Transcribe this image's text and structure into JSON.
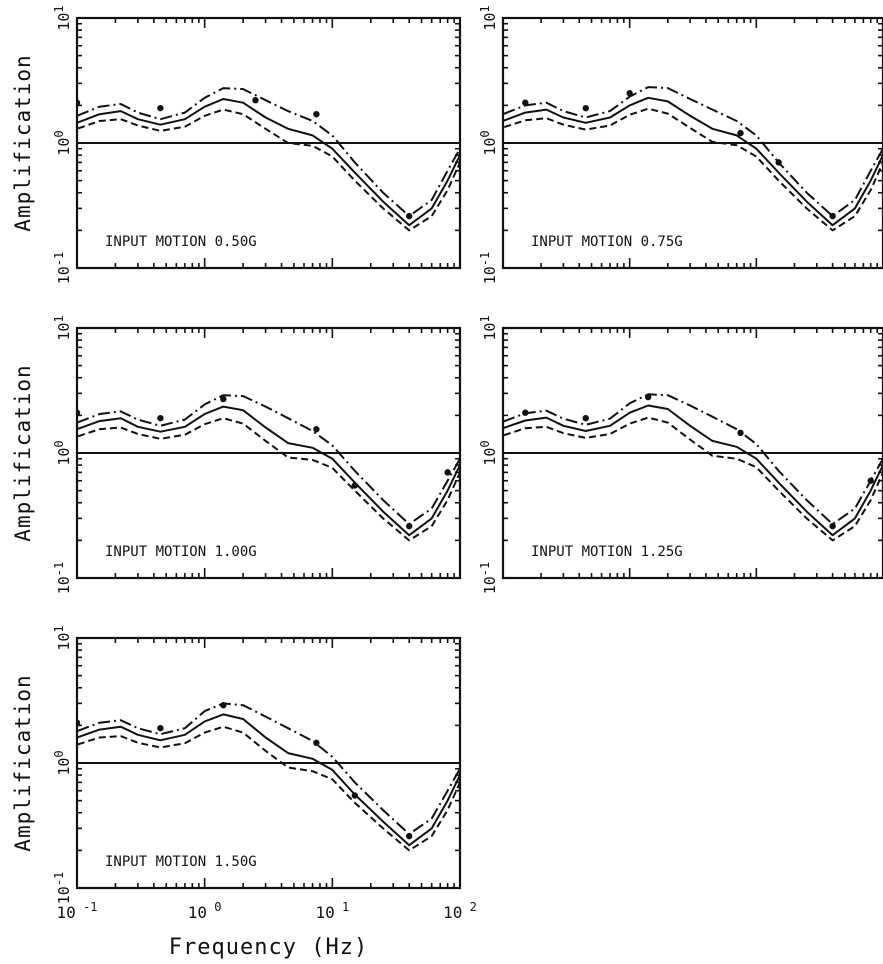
{
  "chart_data": [
    {
      "type": "line",
      "annotation": "INPUT MOTION 0.50G",
      "ylabel": "Amplification",
      "xlabel": "",
      "x_scale": "log",
      "y_scale": "log",
      "xlim": [
        0.1,
        100
      ],
      "ylim": [
        0.1,
        10
      ],
      "x_ticks": [
        "10 -1",
        "10 0",
        "10 1",
        "10 2"
      ],
      "y_ticks": [
        "10 -1",
        "10 0",
        "10 1"
      ],
      "reference_line": 1,
      "series": [
        {
          "style": "dash-dot",
          "x": [
            0.07,
            0.1,
            0.15,
            0.22,
            0.3,
            0.45,
            0.7,
            1,
            1.4,
            2,
            3,
            4.5,
            7,
            10,
            15,
            25,
            40,
            60,
            80,
            100
          ],
          "y": [
            1.4,
            1.65,
            1.95,
            2.05,
            1.75,
            1.55,
            1.75,
            2.3,
            2.75,
            2.7,
            2.2,
            1.8,
            1.5,
            1.15,
            0.7,
            0.4,
            0.26,
            0.35,
            0.6,
            0.9
          ]
        },
        {
          "style": "solid",
          "x": [
            0.07,
            0.1,
            0.15,
            0.22,
            0.3,
            0.45,
            0.7,
            1,
            1.4,
            2,
            3,
            4.5,
            7,
            10,
            15,
            25,
            40,
            60,
            80,
            100
          ],
          "y": [
            1.25,
            1.45,
            1.7,
            1.8,
            1.55,
            1.4,
            1.55,
            1.95,
            2.25,
            2.1,
            1.6,
            1.3,
            1.15,
            0.9,
            0.58,
            0.34,
            0.22,
            0.3,
            0.5,
            0.8
          ]
        },
        {
          "style": "dashed",
          "x": [
            0.07,
            0.1,
            0.15,
            0.22,
            0.3,
            0.45,
            0.7,
            1,
            1.4,
            2,
            3,
            4.5,
            7,
            10,
            15,
            25,
            40,
            60,
            80,
            100
          ],
          "y": [
            1.15,
            1.3,
            1.5,
            1.55,
            1.38,
            1.25,
            1.35,
            1.65,
            1.85,
            1.7,
            1.3,
            1.0,
            0.95,
            0.78,
            0.5,
            0.3,
            0.2,
            0.26,
            0.42,
            0.7
          ]
        },
        {
          "style": "dots",
          "x": [
            0.1,
            0.45,
            2.5,
            7.5,
            40
          ],
          "y": [
            2.1,
            1.9,
            2.2,
            1.7,
            0.26
          ]
        }
      ]
    },
    {
      "type": "line",
      "annotation": "INPUT MOTION 0.75G",
      "ylabel": "",
      "xlabel": "",
      "x_scale": "log",
      "y_scale": "log",
      "xlim": [
        0.1,
        100
      ],
      "ylim": [
        0.1,
        10
      ],
      "x_ticks": [
        "10 -1",
        "10 0",
        "10 1",
        "10 2"
      ],
      "y_ticks": [
        "10 -1",
        "10 0",
        "10 1"
      ],
      "reference_line": 1,
      "series": [
        {
          "style": "dash-dot",
          "x": [
            0.07,
            0.1,
            0.15,
            0.22,
            0.3,
            0.45,
            0.7,
            1,
            1.4,
            2,
            3,
            4.5,
            7,
            10,
            15,
            25,
            40,
            60,
            80,
            100
          ],
          "y": [
            1.45,
            1.7,
            2.0,
            2.1,
            1.8,
            1.6,
            1.8,
            2.35,
            2.8,
            2.75,
            2.25,
            1.85,
            1.5,
            1.15,
            0.7,
            0.4,
            0.26,
            0.35,
            0.6,
            0.9
          ]
        },
        {
          "style": "solid",
          "x": [
            0.07,
            0.1,
            0.15,
            0.22,
            0.3,
            0.45,
            0.7,
            1,
            1.4,
            2,
            3,
            4.5,
            7,
            10,
            15,
            25,
            40,
            60,
            80,
            100
          ],
          "y": [
            1.3,
            1.5,
            1.75,
            1.85,
            1.6,
            1.45,
            1.6,
            2.0,
            2.3,
            2.15,
            1.65,
            1.3,
            1.15,
            0.9,
            0.58,
            0.34,
            0.22,
            0.3,
            0.5,
            0.8
          ]
        },
        {
          "style": "dashed",
          "x": [
            0.07,
            0.1,
            0.15,
            0.22,
            0.3,
            0.45,
            0.7,
            1,
            1.4,
            2,
            3,
            4.5,
            7,
            10,
            15,
            25,
            40,
            60,
            80,
            100
          ],
          "y": [
            1.18,
            1.33,
            1.52,
            1.58,
            1.4,
            1.28,
            1.38,
            1.68,
            1.88,
            1.72,
            1.32,
            1.02,
            0.96,
            0.78,
            0.5,
            0.3,
            0.2,
            0.26,
            0.42,
            0.7
          ]
        },
        {
          "style": "dots",
          "x": [
            0.15,
            0.45,
            1.0,
            7.5,
            15,
            40
          ],
          "y": [
            2.1,
            1.9,
            2.5,
            1.2,
            0.7,
            0.26
          ]
        }
      ]
    },
    {
      "type": "line",
      "annotation": "INPUT MOTION 1.00G",
      "ylabel": "Amplification",
      "xlabel": "",
      "x_scale": "log",
      "y_scale": "log",
      "xlim": [
        0.1,
        100
      ],
      "ylim": [
        0.1,
        10
      ],
      "x_ticks": [
        "10 -1",
        "10 0",
        "10 1",
        "10 2"
      ],
      "y_ticks": [
        "10 -1",
        "10 0",
        "10 1"
      ],
      "reference_line": 1,
      "series": [
        {
          "style": "dash-dot",
          "x": [
            0.07,
            0.1,
            0.15,
            0.22,
            0.3,
            0.45,
            0.7,
            1,
            1.4,
            2,
            3,
            4.5,
            7,
            10,
            15,
            25,
            40,
            60,
            80,
            100
          ],
          "y": [
            1.5,
            1.75,
            2.05,
            2.15,
            1.85,
            1.65,
            1.85,
            2.45,
            2.9,
            2.85,
            2.35,
            1.9,
            1.5,
            1.15,
            0.72,
            0.42,
            0.27,
            0.36,
            0.6,
            0.9
          ]
        },
        {
          "style": "solid",
          "x": [
            0.07,
            0.1,
            0.15,
            0.22,
            0.3,
            0.45,
            0.7,
            1,
            1.4,
            2,
            3,
            4.5,
            7,
            10,
            15,
            25,
            40,
            60,
            80,
            100
          ],
          "y": [
            1.35,
            1.55,
            1.8,
            1.9,
            1.62,
            1.48,
            1.62,
            2.05,
            2.35,
            2.2,
            1.6,
            1.2,
            1.1,
            0.9,
            0.58,
            0.34,
            0.22,
            0.3,
            0.5,
            0.8
          ]
        },
        {
          "style": "dashed",
          "x": [
            0.07,
            0.1,
            0.15,
            0.22,
            0.3,
            0.45,
            0.7,
            1,
            1.4,
            2,
            3,
            4.5,
            7,
            10,
            15,
            25,
            40,
            60,
            80,
            100
          ],
          "y": [
            1.2,
            1.35,
            1.55,
            1.6,
            1.42,
            1.3,
            1.4,
            1.7,
            1.9,
            1.72,
            1.25,
            0.92,
            0.88,
            0.76,
            0.5,
            0.3,
            0.2,
            0.26,
            0.42,
            0.7
          ]
        },
        {
          "style": "dots",
          "x": [
            0.1,
            0.45,
            1.4,
            7.5,
            15,
            40,
            80
          ],
          "y": [
            2.1,
            1.9,
            2.7,
            1.55,
            0.55,
            0.26,
            0.7
          ]
        }
      ]
    },
    {
      "type": "line",
      "annotation": "INPUT MOTION 1.25G",
      "ylabel": "",
      "xlabel": "",
      "x_scale": "log",
      "y_scale": "log",
      "xlim": [
        0.1,
        100
      ],
      "ylim": [
        0.1,
        10
      ],
      "x_ticks": [
        "10 -1",
        "10 0",
        "10 1",
        "10 2"
      ],
      "y_ticks": [
        "10 -1",
        "10 0",
        "10 1"
      ],
      "reference_line": 1,
      "series": [
        {
          "style": "dash-dot",
          "x": [
            0.07,
            0.1,
            0.15,
            0.22,
            0.3,
            0.45,
            0.7,
            1,
            1.4,
            2,
            3,
            4.5,
            7,
            10,
            15,
            25,
            40,
            60,
            80,
            100
          ],
          "y": [
            1.5,
            1.78,
            2.08,
            2.18,
            1.88,
            1.68,
            1.88,
            2.5,
            2.95,
            2.9,
            2.4,
            1.95,
            1.55,
            1.18,
            0.72,
            0.42,
            0.27,
            0.36,
            0.6,
            0.9
          ]
        },
        {
          "style": "solid",
          "x": [
            0.07,
            0.1,
            0.15,
            0.22,
            0.3,
            0.45,
            0.7,
            1,
            1.4,
            2,
            3,
            4.5,
            7,
            10,
            15,
            25,
            40,
            60,
            80,
            100
          ],
          "y": [
            1.35,
            1.58,
            1.82,
            1.92,
            1.65,
            1.5,
            1.65,
            2.1,
            2.4,
            2.25,
            1.65,
            1.25,
            1.12,
            0.9,
            0.58,
            0.34,
            0.22,
            0.3,
            0.5,
            0.8
          ]
        },
        {
          "style": "dashed",
          "x": [
            0.07,
            0.1,
            0.15,
            0.22,
            0.3,
            0.45,
            0.7,
            1,
            1.4,
            2,
            3,
            4.5,
            7,
            10,
            15,
            25,
            40,
            60,
            80,
            100
          ],
          "y": [
            1.2,
            1.38,
            1.58,
            1.62,
            1.44,
            1.32,
            1.42,
            1.72,
            1.92,
            1.75,
            1.28,
            0.95,
            0.9,
            0.77,
            0.5,
            0.3,
            0.2,
            0.26,
            0.42,
            0.7
          ]
        },
        {
          "style": "dots",
          "x": [
            0.15,
            0.45,
            1.4,
            7.5,
            40,
            80
          ],
          "y": [
            2.1,
            1.9,
            2.8,
            1.45,
            0.26,
            0.6
          ]
        }
      ]
    },
    {
      "type": "line",
      "annotation": "INPUT MOTION 1.50G",
      "ylabel": "Amplification",
      "xlabel": "Frequency (Hz)",
      "x_scale": "log",
      "y_scale": "log",
      "xlim": [
        0.1,
        100
      ],
      "ylim": [
        0.1,
        10
      ],
      "x_ticks": [
        "10 -1",
        "10 0",
        "10 1",
        "10 2"
      ],
      "y_ticks": [
        "10 -1",
        "10 0",
        "10 1"
      ],
      "reference_line": 1,
      "series": [
        {
          "style": "dash-dot",
          "x": [
            0.07,
            0.1,
            0.15,
            0.22,
            0.3,
            0.45,
            0.7,
            1,
            1.4,
            2,
            3,
            4.5,
            7,
            10,
            15,
            25,
            40,
            60,
            80,
            100
          ],
          "y": [
            1.55,
            1.8,
            2.1,
            2.2,
            1.9,
            1.7,
            1.9,
            2.6,
            3.0,
            2.9,
            2.35,
            1.9,
            1.5,
            1.12,
            0.7,
            0.42,
            0.27,
            0.36,
            0.6,
            0.9
          ]
        },
        {
          "style": "solid",
          "x": [
            0.07,
            0.1,
            0.15,
            0.22,
            0.3,
            0.45,
            0.7,
            1,
            1.4,
            2,
            3,
            4.5,
            7,
            10,
            15,
            25,
            40,
            60,
            80,
            100
          ],
          "y": [
            1.38,
            1.6,
            1.85,
            1.95,
            1.68,
            1.52,
            1.68,
            2.15,
            2.45,
            2.25,
            1.6,
            1.2,
            1.08,
            0.88,
            0.56,
            0.34,
            0.22,
            0.3,
            0.5,
            0.8
          ]
        },
        {
          "style": "dashed",
          "x": [
            0.07,
            0.1,
            0.15,
            0.22,
            0.3,
            0.45,
            0.7,
            1,
            1.4,
            2,
            3,
            4.5,
            7,
            10,
            15,
            25,
            40,
            60,
            80,
            100
          ],
          "y": [
            1.22,
            1.4,
            1.6,
            1.64,
            1.45,
            1.33,
            1.44,
            1.75,
            1.95,
            1.75,
            1.25,
            0.92,
            0.86,
            0.74,
            0.48,
            0.3,
            0.2,
            0.26,
            0.42,
            0.7
          ]
        },
        {
          "style": "dots",
          "x": [
            0.1,
            0.45,
            1.4,
            7.5,
            15,
            40
          ],
          "y": [
            2.1,
            1.9,
            2.9,
            1.45,
            0.55,
            0.26
          ]
        }
      ]
    }
  ]
}
